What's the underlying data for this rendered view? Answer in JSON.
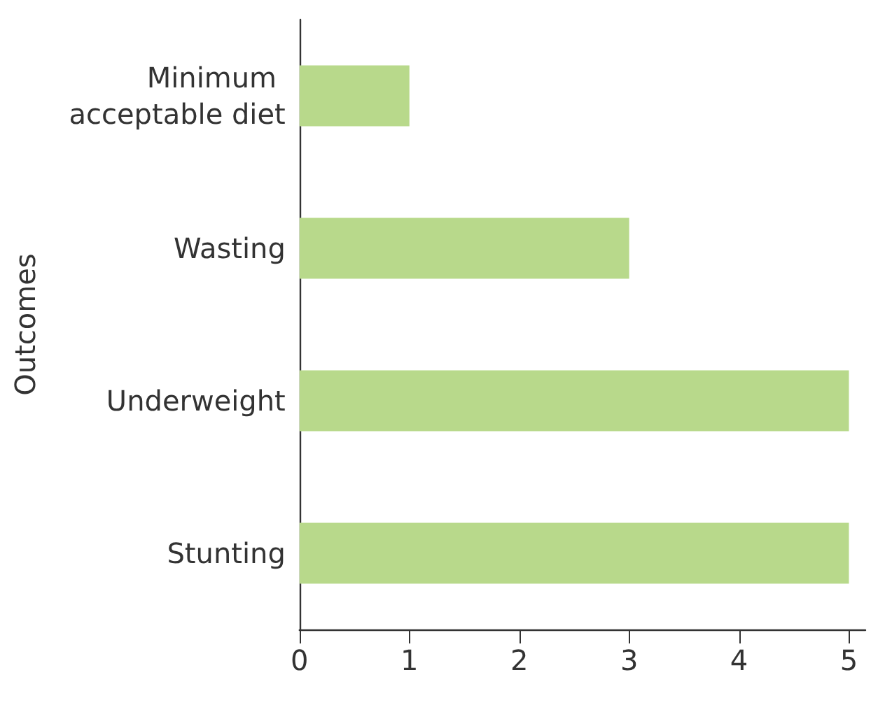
{
  "chart_data": {
    "type": "bar",
    "orientation": "horizontal",
    "ylabel": "Outcomes",
    "categories": [
      "Minimum acceptable diet",
      "Wasting",
      "Underweight",
      "Stunting"
    ],
    "values": [
      1,
      3,
      5,
      5
    ],
    "color": "#b8d98b",
    "xlim": [
      0,
      5.15
    ],
    "xticks": [
      0,
      1,
      2,
      3,
      4,
      5
    ],
    "grid": false
  }
}
